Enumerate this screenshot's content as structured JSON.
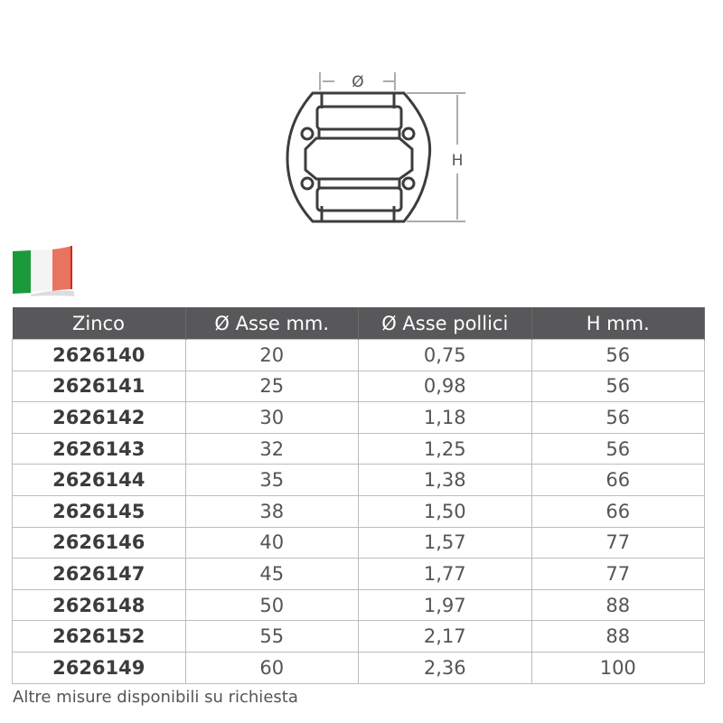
{
  "drawing": {
    "diameter_label": "Ø",
    "height_label": "H"
  },
  "flag": {
    "icon": "italy-flag-icon",
    "colors": [
      "#1a9a3a",
      "#ffffff",
      "#e4412f"
    ]
  },
  "table": {
    "headers": [
      "Zinco",
      "Ø Asse mm.",
      "Ø Asse pollici",
      "H mm."
    ],
    "rows": [
      [
        "2626140",
        "20",
        "0,75",
        "56"
      ],
      [
        "2626141",
        "25",
        "0,98",
        "56"
      ],
      [
        "2626142",
        "30",
        "1,18",
        "56"
      ],
      [
        "2626143",
        "32",
        "1,25",
        "56"
      ],
      [
        "2626144",
        "35",
        "1,38",
        "66"
      ],
      [
        "2626145",
        "38",
        "1,50",
        "66"
      ],
      [
        "2626146",
        "40",
        "1,57",
        "77"
      ],
      [
        "2626147",
        "45",
        "1,77",
        "77"
      ],
      [
        "2626148",
        "50",
        "1,97",
        "88"
      ],
      [
        "2626152",
        "55",
        "2,17",
        "88"
      ],
      [
        "2626149",
        "60",
        "2,36",
        "100"
      ]
    ]
  },
  "note": "Altre misure disponibili su richiesta"
}
